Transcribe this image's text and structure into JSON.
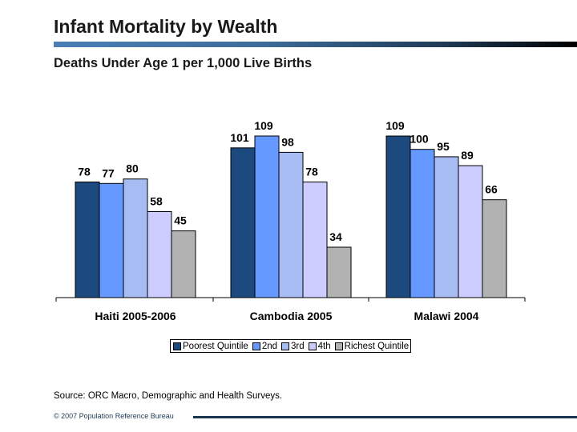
{
  "title": "Infant Mortality by Wealth",
  "subtitle": "Deaths Under Age 1 per 1,000 Live Births",
  "chart_data": {
    "type": "bar",
    "categories": [
      "Haiti 2005-2006",
      "Cambodia 2005",
      "Malawi  2004"
    ],
    "series": [
      {
        "name": "Poorest Quintile",
        "values": [
          78,
          101,
          109
        ],
        "color": "#1c4a7e"
      },
      {
        "name": "2nd",
        "values": [
          77,
          109,
          100
        ],
        "color": "#6699ff"
      },
      {
        "name": "3rd",
        "values": [
          80,
          98,
          95
        ],
        "color": "#a6bcf2"
      },
      {
        "name": "4th",
        "values": [
          58,
          78,
          89
        ],
        "color": "#ccccff"
      },
      {
        "name": "Richest Quintile",
        "values": [
          45,
          34,
          66
        ],
        "color": "#b2b2b2"
      }
    ],
    "ylim": [
      0,
      115
    ],
    "grid": false,
    "data_labels": true,
    "legend_position": "bottom"
  },
  "source": "Source: ORC Macro, Demographic and Health Surveys.",
  "copyright": "© 2007 Population Reference Bureau"
}
